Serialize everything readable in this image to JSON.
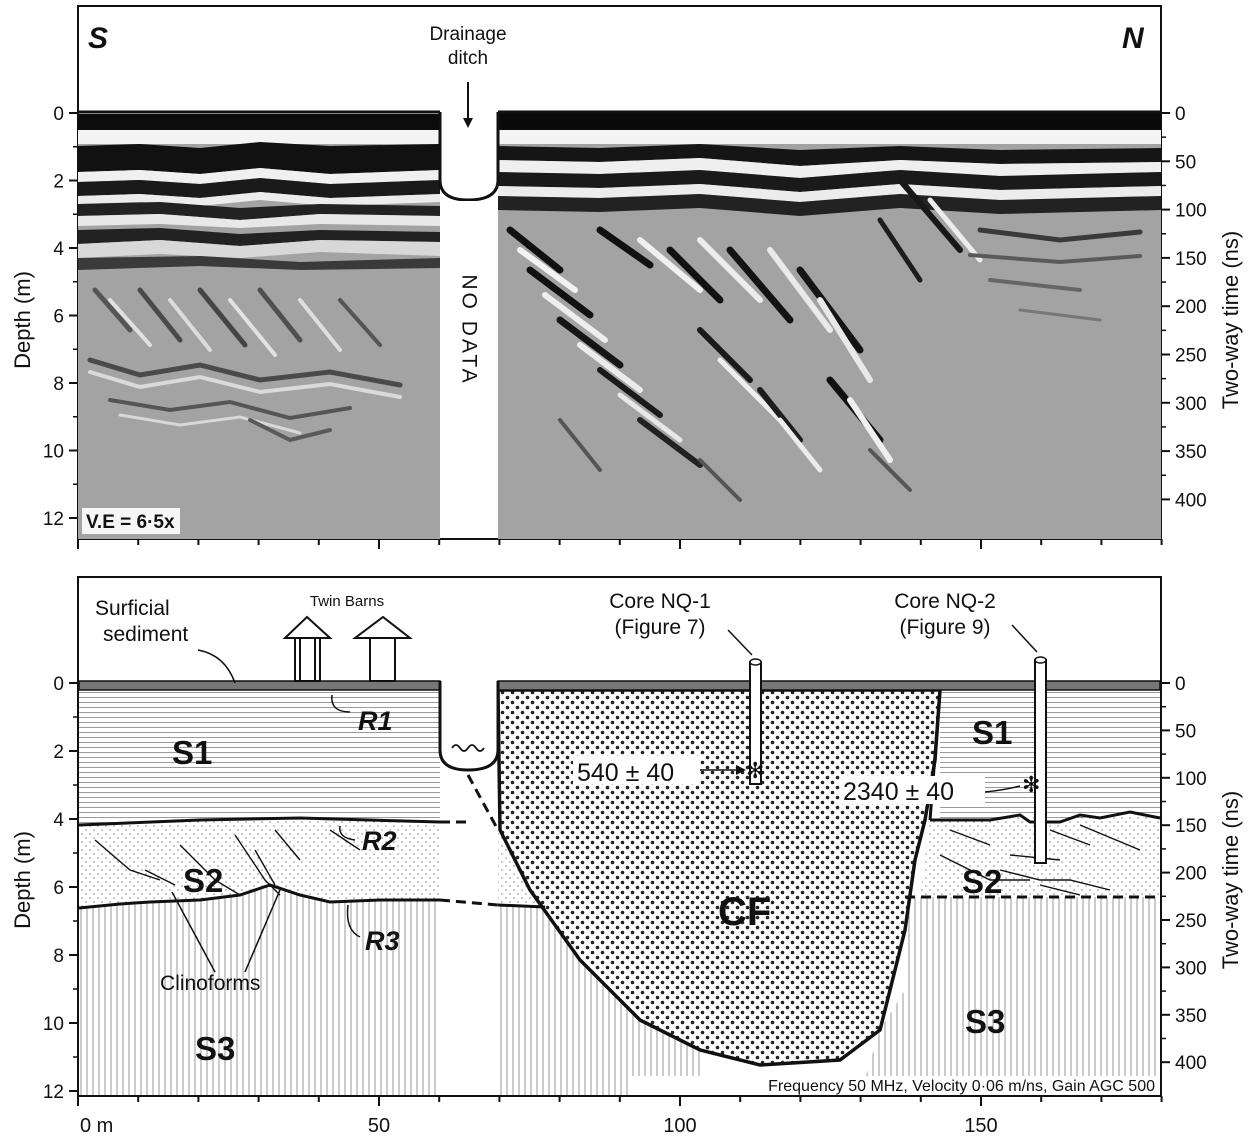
{
  "top_panel": {
    "south_label": "S",
    "north_label": "N",
    "ditch_label_line1": "Drainage",
    "ditch_label_line2": "ditch",
    "no_data_label": "NO DATA",
    "ve_label": "V.E = 6·5x",
    "left_axis_title": "Depth (m)",
    "right_axis_title": "Two-way time (ns)",
    "depth_ticks": [
      "0",
      "2",
      "4",
      "6",
      "8",
      "10",
      "12"
    ],
    "time_ticks": [
      "0",
      "50",
      "100",
      "150",
      "200",
      "250",
      "300",
      "350",
      "400"
    ]
  },
  "bottom_panel": {
    "surficial_line1": "Surficial",
    "surficial_line2": "sediment",
    "twin_barns": "Twin Barns",
    "core1_line1": "Core NQ-1",
    "core1_line2": "(Figure 7)",
    "core2_line1": "Core NQ-2",
    "core2_line2": "(Figure 9)",
    "r1": "R1",
    "r2": "R2",
    "r3": "R3",
    "s1_left": "S1",
    "s1_right": "S1",
    "s2_left": "S2",
    "s2_right": "S2",
    "s3_left": "S3",
    "s3_right": "S3",
    "cf": "CF",
    "clinoforms": "Clinoforms",
    "date1": "540 ± 40",
    "date2": "2340 ± 40",
    "footer": "Frequency 50 MHz, Velocity 0·06 m/ns, Gain AGC 500",
    "left_axis_title": "Depth (m)",
    "right_axis_title": "Two-way time (ns)",
    "depth_ticks": [
      "0",
      "2",
      "4",
      "6",
      "8",
      "10",
      "12"
    ],
    "time_ticks": [
      "0",
      "50",
      "100",
      "150",
      "200",
      "250",
      "300",
      "350",
      "400"
    ]
  },
  "x_axis": {
    "ticks": [
      "0 m",
      "50",
      "100",
      "150"
    ]
  }
}
